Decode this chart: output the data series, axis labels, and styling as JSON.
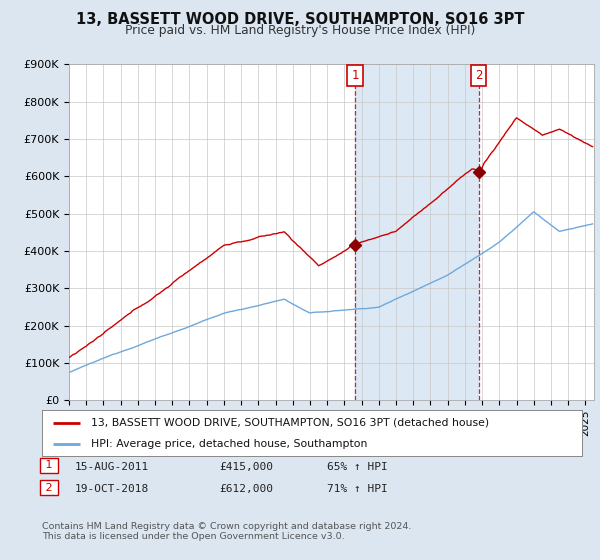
{
  "title": "13, BASSETT WOOD DRIVE, SOUTHAMPTON, SO16 3PT",
  "subtitle": "Price paid vs. HM Land Registry's House Price Index (HPI)",
  "ylim": [
    0,
    900000
  ],
  "yticks": [
    0,
    100000,
    200000,
    300000,
    400000,
    500000,
    600000,
    700000,
    800000,
    900000
  ],
  "ytick_labels": [
    "£0",
    "£100K",
    "£200K",
    "£300K",
    "£400K",
    "£500K",
    "£600K",
    "£700K",
    "£800K",
    "£900K"
  ],
  "hpi_color": "#6fa8dc",
  "price_color": "#cc0000",
  "marker_color": "#8b0000",
  "vline_color": "#cc0000",
  "sale1_date_num": 2011.62,
  "sale1_price": 415000,
  "sale2_date_num": 2018.79,
  "sale2_price": 612000,
  "legend_price_label": "13, BASSETT WOOD DRIVE, SOUTHAMPTON, SO16 3PT (detached house)",
  "legend_hpi_label": "HPI: Average price, detached house, Southampton",
  "footer": "Contains HM Land Registry data © Crown copyright and database right 2024.\nThis data is licensed under the Open Government Licence v3.0.",
  "background_color": "#dce6f1",
  "plot_bg_color": "#ffffff",
  "grid_color": "#c8c8c8",
  "span_color": "#dce9f5",
  "xlim_start": 1995,
  "xlim_end": 2025.5
}
